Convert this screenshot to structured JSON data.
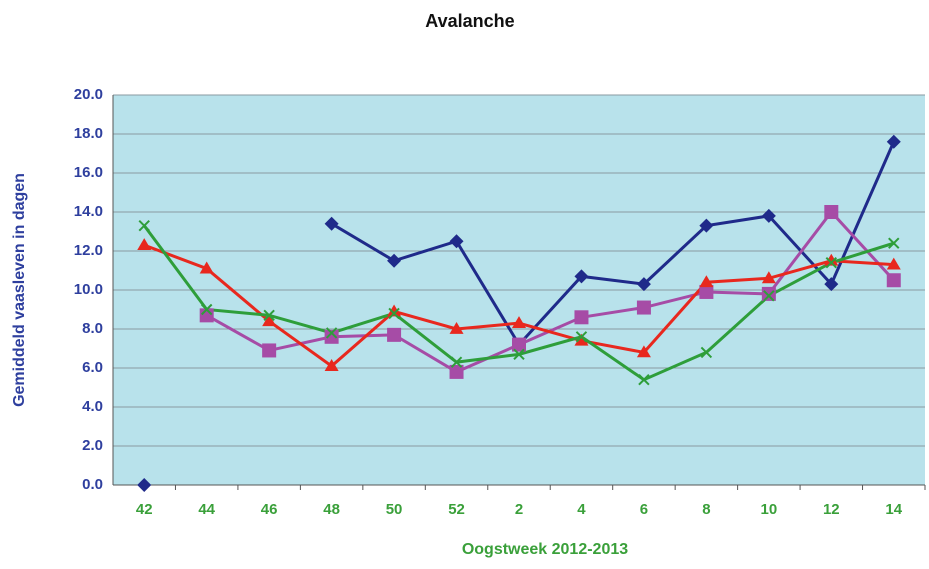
{
  "chart_data": {
    "type": "line",
    "title": "Avalanche",
    "xlabel": "Oogstweek 2012-2013",
    "ylabel": "Gemiddeld vaasleven in dagen",
    "categories": [
      "42",
      "44",
      "46",
      "48",
      "50",
      "52",
      "2",
      "4",
      "6",
      "8",
      "10",
      "12",
      "14"
    ],
    "series": [
      {
        "color": "#1f2a8a",
        "marker": "diamond",
        "values": [
          0,
          null,
          null,
          13.4,
          11.5,
          12.5,
          7.2,
          10.7,
          10.3,
          13.3,
          13.8,
          10.3,
          17.6
        ]
      },
      {
        "color": "#a64ca6",
        "marker": "square",
        "values": [
          null,
          8.7,
          6.9,
          7.6,
          7.7,
          5.8,
          7.2,
          8.6,
          9.1,
          9.9,
          9.8,
          14.0,
          10.5
        ]
      },
      {
        "color": "#e8281e",
        "marker": "triangle",
        "values": [
          12.3,
          11.1,
          8.4,
          6.1,
          8.9,
          8.0,
          8.3,
          7.4,
          6.8,
          10.4,
          10.6,
          11.5,
          11.3
        ]
      },
      {
        "color": "#2e9e3a",
        "marker": "x",
        "values": [
          13.3,
          9.0,
          8.7,
          7.8,
          8.8,
          6.3,
          6.7,
          7.6,
          5.4,
          6.8,
          9.7,
          11.4,
          12.4
        ]
      }
    ],
    "ylim": [
      0,
      20
    ],
    "yticks": [
      {
        "value": 0,
        "label": "0.0"
      },
      {
        "value": 2,
        "label": "2.0"
      },
      {
        "value": 4,
        "label": "4.0"
      },
      {
        "value": 6,
        "label": "6.0"
      },
      {
        "value": 8,
        "label": "8.0"
      },
      {
        "value": 10,
        "label": "10.0"
      },
      {
        "value": 12,
        "label": "12.0"
      },
      {
        "value": 14,
        "label": "14.0"
      },
      {
        "value": 16,
        "label": "16.0"
      },
      {
        "value": 18,
        "label": "18.0"
      },
      {
        "value": 20,
        "label": "20.0"
      }
    ],
    "grid": true
  }
}
